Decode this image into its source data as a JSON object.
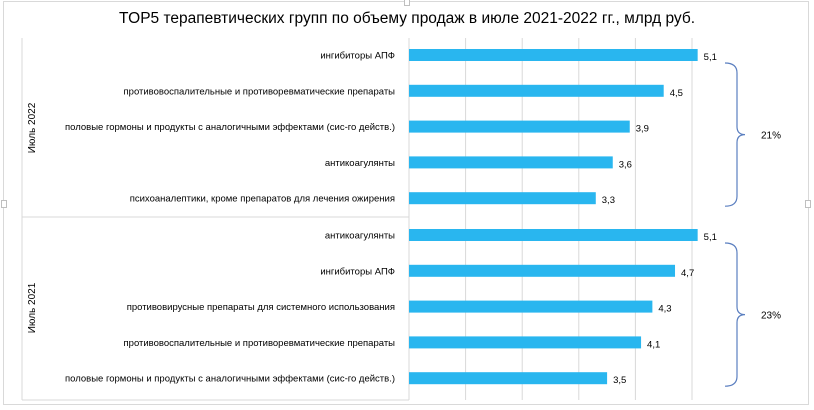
{
  "chart_data": {
    "type": "bar",
    "orientation": "horizontal",
    "title": "TOP5 терапевтических групп по объему продаж в июле 2021-2022 гг., млрд руб.",
    "xlim": [
      0,
      5.6
    ],
    "grid": true,
    "bar_color": "#29b6ef",
    "groups": [
      {
        "label": "Июль 2022",
        "brace_label": "21%",
        "categories": [
          "ингибиторы АПФ",
          "противовоспалительные и противоревматические препараты",
          "половые гормоны и продукты с аналогичными эффектами (сис-го действ.)",
          "антикоагулянты",
          "психоаналептики, кроме препаратов для лечения ожирения"
        ],
        "values": [
          5.1,
          4.5,
          3.9,
          3.6,
          3.3
        ],
        "value_labels": [
          "5,1",
          "4,5",
          "3,9",
          "3,6",
          "3,3"
        ]
      },
      {
        "label": "Июль 2021",
        "brace_label": "23%",
        "categories": [
          "антикоагулянты",
          "ингибиторы АПФ",
          "противовирусные препараты для системного использования",
          "противовоспалительные и противоревматические препараты",
          "половые гормоны и продукты с аналогичными эффектами (сис-го действ.)"
        ],
        "values": [
          5.1,
          4.7,
          4.3,
          4.1,
          3.5
        ],
        "value_labels": [
          "5,1",
          "4,7",
          "4,3",
          "4,1",
          "3,5"
        ]
      }
    ]
  }
}
